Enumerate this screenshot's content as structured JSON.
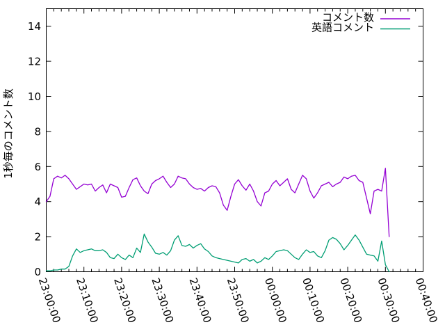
{
  "chart_data": {
    "type": "line",
    "title": "",
    "xlabel": "",
    "ylabel": "1秒毎のコメント数",
    "grid": false,
    "legend_position": "top-right-inside",
    "background_color": "#ffffff",
    "border_color": "#000000",
    "ylim": [
      0,
      15
    ],
    "y_ticks": [
      0,
      2,
      4,
      6,
      8,
      10,
      12,
      14
    ],
    "x_axis": {
      "unit": "time",
      "range_minutes": [
        0,
        100
      ],
      "major_tick_every_minutes": 10,
      "minor_tick_every_minutes": 2,
      "tick_labels": [
        "23:00:00",
        "23:10:00",
        "23:20:00",
        "23:30:00",
        "23:40:00",
        "23:50:00",
        "00:00:00",
        "00:10:00",
        "00:20:00",
        "00:30:00",
        "00:40:00"
      ],
      "label_rotation_deg": 71
    },
    "x_start_minute": 0,
    "x_step_minutes": 1,
    "series": [
      {
        "name": "コメント数",
        "color": "#9400d3",
        "values": [
          4.0,
          4.3,
          5.3,
          5.45,
          5.35,
          5.5,
          5.3,
          5.0,
          4.7,
          4.85,
          5.0,
          4.95,
          5.0,
          4.6,
          4.8,
          4.95,
          4.5,
          5.0,
          4.9,
          4.8,
          4.25,
          4.3,
          4.8,
          5.25,
          5.35,
          4.9,
          4.6,
          4.45,
          5.0,
          5.2,
          5.3,
          5.45,
          5.1,
          4.8,
          5.0,
          5.45,
          5.35,
          5.3,
          5.0,
          4.8,
          4.7,
          4.75,
          4.6,
          4.8,
          4.9,
          4.85,
          4.5,
          3.8,
          3.5,
          4.3,
          5.0,
          5.25,
          4.9,
          4.65,
          5.0,
          4.6,
          4.0,
          3.75,
          4.5,
          4.6,
          5.0,
          5.2,
          4.9,
          5.1,
          5.3,
          4.7,
          4.5,
          5.0,
          5.5,
          5.3,
          4.6,
          4.2,
          4.5,
          4.9,
          5.0,
          5.1,
          4.85,
          5.0,
          5.1,
          5.4,
          5.3,
          5.45,
          5.5,
          5.2,
          5.1,
          4.2,
          3.3,
          4.6,
          4.7,
          4.6,
          5.9,
          2.0
        ]
      },
      {
        "name": "英語コメント",
        "color": "#009e73",
        "values": [
          0.05,
          0.05,
          0.1,
          0.1,
          0.15,
          0.15,
          0.3,
          0.9,
          1.3,
          1.1,
          1.2,
          1.25,
          1.3,
          1.2,
          1.2,
          1.25,
          1.1,
          0.8,
          0.75,
          1.0,
          0.8,
          0.7,
          0.95,
          0.8,
          1.35,
          1.1,
          2.15,
          1.7,
          1.4,
          1.05,
          1.0,
          1.1,
          0.95,
          1.2,
          1.8,
          2.05,
          1.5,
          1.45,
          1.55,
          1.35,
          1.5,
          1.6,
          1.3,
          1.15,
          0.9,
          0.8,
          0.75,
          0.7,
          0.65,
          0.6,
          0.55,
          0.5,
          0.7,
          0.75,
          0.6,
          0.7,
          0.5,
          0.6,
          0.8,
          0.7,
          0.9,
          1.15,
          1.2,
          1.25,
          1.2,
          1.0,
          0.8,
          0.7,
          1.0,
          1.25,
          1.1,
          1.15,
          0.9,
          0.8,
          1.2,
          1.8,
          1.95,
          1.85,
          1.6,
          1.25,
          1.5,
          1.8,
          2.1,
          1.8,
          1.4,
          1.0,
          0.95,
          0.9,
          0.6,
          1.75,
          0.4,
          0.0
        ]
      }
    ]
  }
}
